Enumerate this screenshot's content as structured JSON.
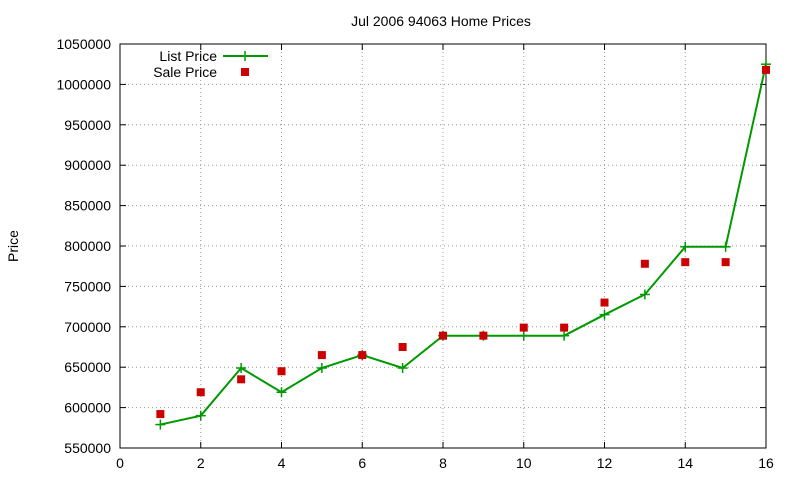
{
  "chart_data": {
    "type": "line",
    "title": "Jul 2006 94063 Home Prices",
    "xlabel": "",
    "ylabel": "Price",
    "xlim": [
      0,
      16
    ],
    "ylim": [
      550000,
      1050000
    ],
    "xticks": [
      "0",
      "2",
      "4",
      "6",
      "8",
      "10",
      "12",
      "14",
      "16"
    ],
    "yticks": [
      "550000",
      "600000",
      "650000",
      "700000",
      "750000",
      "800000",
      "850000",
      "900000",
      "950000",
      "1000000",
      "1050000"
    ],
    "grid": true,
    "legend_position": "top-left",
    "series": [
      {
        "name": "List Price",
        "style": "line+cross",
        "color": "#009900",
        "x": [
          1,
          2,
          3,
          4,
          5,
          6,
          7,
          8,
          9,
          10,
          11,
          12,
          13,
          14,
          15,
          16
        ],
        "y": [
          579000,
          590000,
          649000,
          619000,
          649000,
          665000,
          649000,
          689000,
          689000,
          689000,
          689000,
          715000,
          740000,
          799000,
          799000,
          1025000
        ]
      },
      {
        "name": "Sale Price",
        "style": "square-markers",
        "color": "#cc0000",
        "x": [
          1,
          2,
          3,
          4,
          5,
          6,
          7,
          8,
          9,
          10,
          11,
          12,
          13,
          14,
          15,
          16
        ],
        "y": [
          592000,
          619000,
          635000,
          645000,
          665000,
          665000,
          675000,
          689000,
          689000,
          699000,
          699000,
          730000,
          778000,
          780000,
          780000,
          1018000
        ]
      }
    ]
  }
}
